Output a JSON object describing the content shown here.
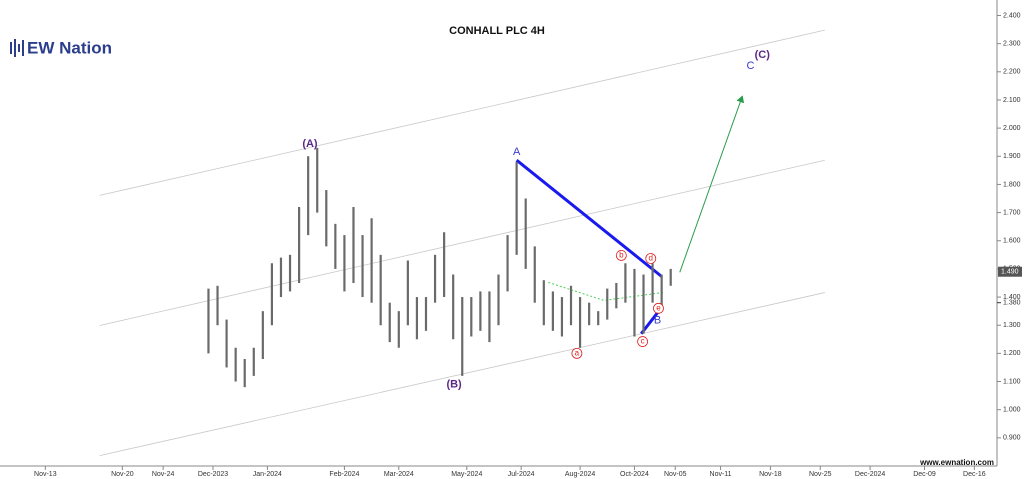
{
  "chart_data": {
    "type": "range-bar",
    "title": "CONHALL PLC 4H",
    "logo": "EW Nation",
    "footer": "www.ewnation.com",
    "xlim": [
      0,
      220
    ],
    "xticks": [
      {
        "value": 10,
        "label": "Nov-13"
      },
      {
        "value": 27,
        "label": "Nov-20"
      },
      {
        "value": 36,
        "label": "Nov-24"
      },
      {
        "value": 47,
        "label": "Dec-2023"
      },
      {
        "value": 59,
        "label": "Jan-2024"
      },
      {
        "value": 76,
        "label": "Feb-2024"
      },
      {
        "value": 88,
        "label": "Mar-2024"
      },
      {
        "value": 103,
        "label": "May-2024"
      },
      {
        "value": 115,
        "label": "Jul-2024"
      },
      {
        "value": 128,
        "label": "Aug-2024"
      },
      {
        "value": 140,
        "label": "Oct-2024"
      },
      {
        "value": 149,
        "label": "Nov-05"
      },
      {
        "value": 159,
        "label": "Nov-11"
      },
      {
        "value": 170,
        "label": "Nov-18"
      },
      {
        "value": 181,
        "label": "Nov-25"
      },
      {
        "value": 192,
        "label": "Dec-2024"
      },
      {
        "value": 204,
        "label": "Dec-09"
      },
      {
        "value": 215,
        "label": "Dec-16"
      }
    ],
    "ylim": [
      0.8,
      2.455
    ],
    "yticks": [
      {
        "value": 0.9,
        "label": "0.900"
      },
      {
        "value": 1.0,
        "label": "1.000"
      },
      {
        "value": 1.1,
        "label": "1.100"
      },
      {
        "value": 1.2,
        "label": "1.200"
      },
      {
        "value": 1.3,
        "label": "1.300"
      },
      {
        "value": 1.4,
        "label": "1.400"
      },
      {
        "value": 1.5,
        "label": "1.500"
      },
      {
        "value": 1.6,
        "label": "1.600"
      },
      {
        "value": 1.7,
        "label": "1.700"
      },
      {
        "value": 1.8,
        "label": "1.800"
      },
      {
        "value": 1.9,
        "label": "1.900"
      },
      {
        "value": 2.0,
        "label": "2.000"
      },
      {
        "value": 2.1,
        "label": "2.100"
      },
      {
        "value": 2.2,
        "label": "2.200"
      },
      {
        "value": 2.3,
        "label": "2.300"
      },
      {
        "value": 2.4,
        "label": "2.400"
      }
    ],
    "last_price": {
      "value": 1.49,
      "label": "1.490"
    },
    "ref_price": {
      "value": 1.38,
      "label": "1.380"
    },
    "color": "#6a6a6a",
    "x": [
      46,
      48,
      50,
      52,
      54,
      56,
      58,
      60,
      62,
      64,
      66,
      68,
      70,
      72,
      74,
      76,
      78,
      80,
      82,
      84,
      86,
      88,
      90,
      92,
      94,
      96,
      98,
      100,
      102,
      104,
      106,
      108,
      110,
      112,
      114,
      116,
      118,
      120,
      122,
      124,
      126,
      128,
      130,
      132,
      134,
      136,
      138,
      140,
      142,
      144,
      146,
      148
    ],
    "high": [
      1.43,
      1.44,
      1.32,
      1.22,
      1.18,
      1.22,
      1.35,
      1.52,
      1.54,
      1.55,
      1.72,
      1.9,
      1.93,
      1.78,
      1.66,
      1.62,
      1.72,
      1.62,
      1.68,
      1.55,
      1.38,
      1.35,
      1.53,
      1.4,
      1.4,
      1.55,
      1.63,
      1.48,
      1.4,
      1.4,
      1.42,
      1.42,
      1.48,
      1.62,
      1.88,
      1.75,
      1.58,
      1.46,
      1.42,
      1.4,
      1.44,
      1.4,
      1.38,
      1.35,
      1.43,
      1.45,
      1.52,
      1.5,
      1.48,
      1.52,
      1.48,
      1.5
    ],
    "low": [
      1.2,
      1.3,
      1.15,
      1.1,
      1.08,
      1.12,
      1.18,
      1.3,
      1.4,
      1.42,
      1.45,
      1.62,
      1.7,
      1.58,
      1.5,
      1.42,
      1.45,
      1.4,
      1.38,
      1.3,
      1.24,
      1.22,
      1.3,
      1.25,
      1.28,
      1.38,
      1.4,
      1.25,
      1.12,
      1.26,
      1.28,
      1.24,
      1.3,
      1.42,
      1.55,
      1.5,
      1.38,
      1.3,
      1.28,
      1.26,
      1.3,
      1.22,
      1.3,
      1.3,
      1.32,
      1.36,
      1.38,
      1.26,
      1.27,
      1.38,
      1.37,
      1.44
    ],
    "lines": [
      {
        "x": [
          22,
          182
        ],
        "y": [
          1.761,
          2.348
        ],
        "color": "#c8c8c8",
        "width": 0.8
      },
      {
        "x": [
          22,
          182
        ],
        "y": [
          1.299,
          1.886
        ],
        "color": "#c8c8c8",
        "width": 0.8
      },
      {
        "x": [
          22,
          182
        ],
        "y": [
          0.837,
          1.416
        ],
        "color": "#c8c8c8",
        "width": 0.8
      },
      {
        "x": [
          114,
          146
        ],
        "y": [
          1.886,
          1.473
        ],
        "color": "#1a1aee",
        "width": 3
      },
      {
        "x": [
          141.5,
          146
        ],
        "y": [
          1.27,
          1.363
        ],
        "color": "#1a1aee",
        "width": 3
      },
      {
        "x": [
          150,
          163.8
        ],
        "y": [
          1.488,
          2.113
        ],
        "color": "#2a9d4a",
        "width": 1,
        "arrow": true
      },
      {
        "x": [
          121,
          133.3,
          146.7
        ],
        "y": [
          1.452,
          1.388,
          1.417
        ],
        "color": "#4ccf5a",
        "width": 1,
        "dash": true
      }
    ],
    "labels": [
      {
        "text": "(A)",
        "x": 68.4,
        "y": 1.943,
        "color": "#5b2a86",
        "bold": true
      },
      {
        "text": "(B)",
        "x": 100.2,
        "y": 1.089,
        "color": "#5b2a86",
        "bold": true
      },
      {
        "text": "(C)",
        "x": 168.2,
        "y": 2.259,
        "color": "#5b2a86",
        "bold": true
      },
      {
        "text": "C",
        "x": 165.6,
        "y": 2.22,
        "color": "#3a3ad0"
      },
      {
        "text": "A",
        "x": 114,
        "y": 1.914,
        "color": "#3a3ad0"
      },
      {
        "text": "B",
        "x": 145.1,
        "y": 1.317,
        "color": "#3a3ad0"
      },
      {
        "text": "a",
        "x": 127.3,
        "y": 1.2,
        "color": "#e02020",
        "circled": true
      },
      {
        "text": "b",
        "x": 137.1,
        "y": 1.548,
        "color": "#e02020",
        "circled": true
      },
      {
        "text": "c",
        "x": 141.8,
        "y": 1.242,
        "color": "#e02020",
        "circled": true
      },
      {
        "text": "d",
        "x": 143.6,
        "y": 1.537,
        "color": "#e02020",
        "circled": true
      },
      {
        "text": "e",
        "x": 145.3,
        "y": 1.36,
        "color": "#e02020",
        "circled": true
      }
    ]
  }
}
